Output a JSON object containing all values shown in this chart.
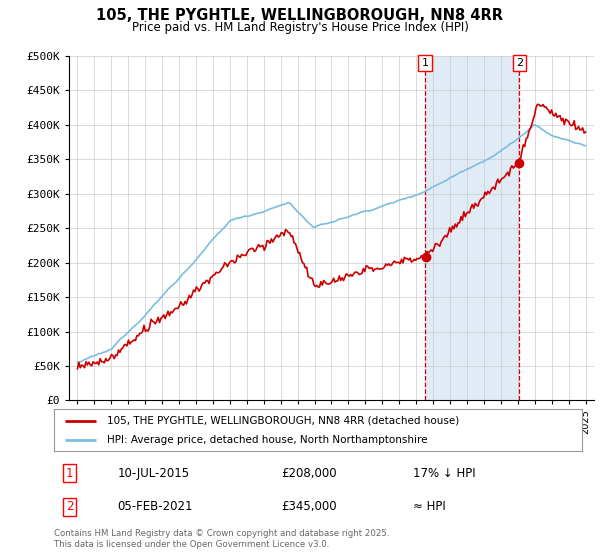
{
  "title": "105, THE PYGHTLE, WELLINGBOROUGH, NN8 4RR",
  "subtitle": "Price paid vs. HM Land Registry's House Price Index (HPI)",
  "ylim": [
    0,
    500000
  ],
  "yticks": [
    0,
    50000,
    100000,
    150000,
    200000,
    250000,
    300000,
    350000,
    400000,
    450000,
    500000
  ],
  "ytick_labels": [
    "£0",
    "£50K",
    "£100K",
    "£150K",
    "£200K",
    "£250K",
    "£300K",
    "£350K",
    "£400K",
    "£450K",
    "£500K"
  ],
  "hpi_color": "#7bbde0",
  "price_color": "#cc0000",
  "marker_1_date": 2015.52,
  "marker_1_price": 208000,
  "marker_2_date": 2021.09,
  "marker_2_price": 345000,
  "legend_line1": "105, THE PYGHTLE, WELLINGBOROUGH, NN8 4RR (detached house)",
  "legend_line2": "HPI: Average price, detached house, North Northamptonshire",
  "note_1_date": "10-JUL-2015",
  "note_1_price": "£208,000",
  "note_1_hpi": "17% ↓ HPI",
  "note_2_date": "05-FEB-2021",
  "note_2_price": "£345,000",
  "note_2_hpi": "≈ HPI",
  "footer": "Contains HM Land Registry data © Crown copyright and database right 2025.\nThis data is licensed under the Open Government Licence v3.0.",
  "bg_color": "#ffffff",
  "grid_color": "#cccccc",
  "highlight_bg": "#dce8f5"
}
